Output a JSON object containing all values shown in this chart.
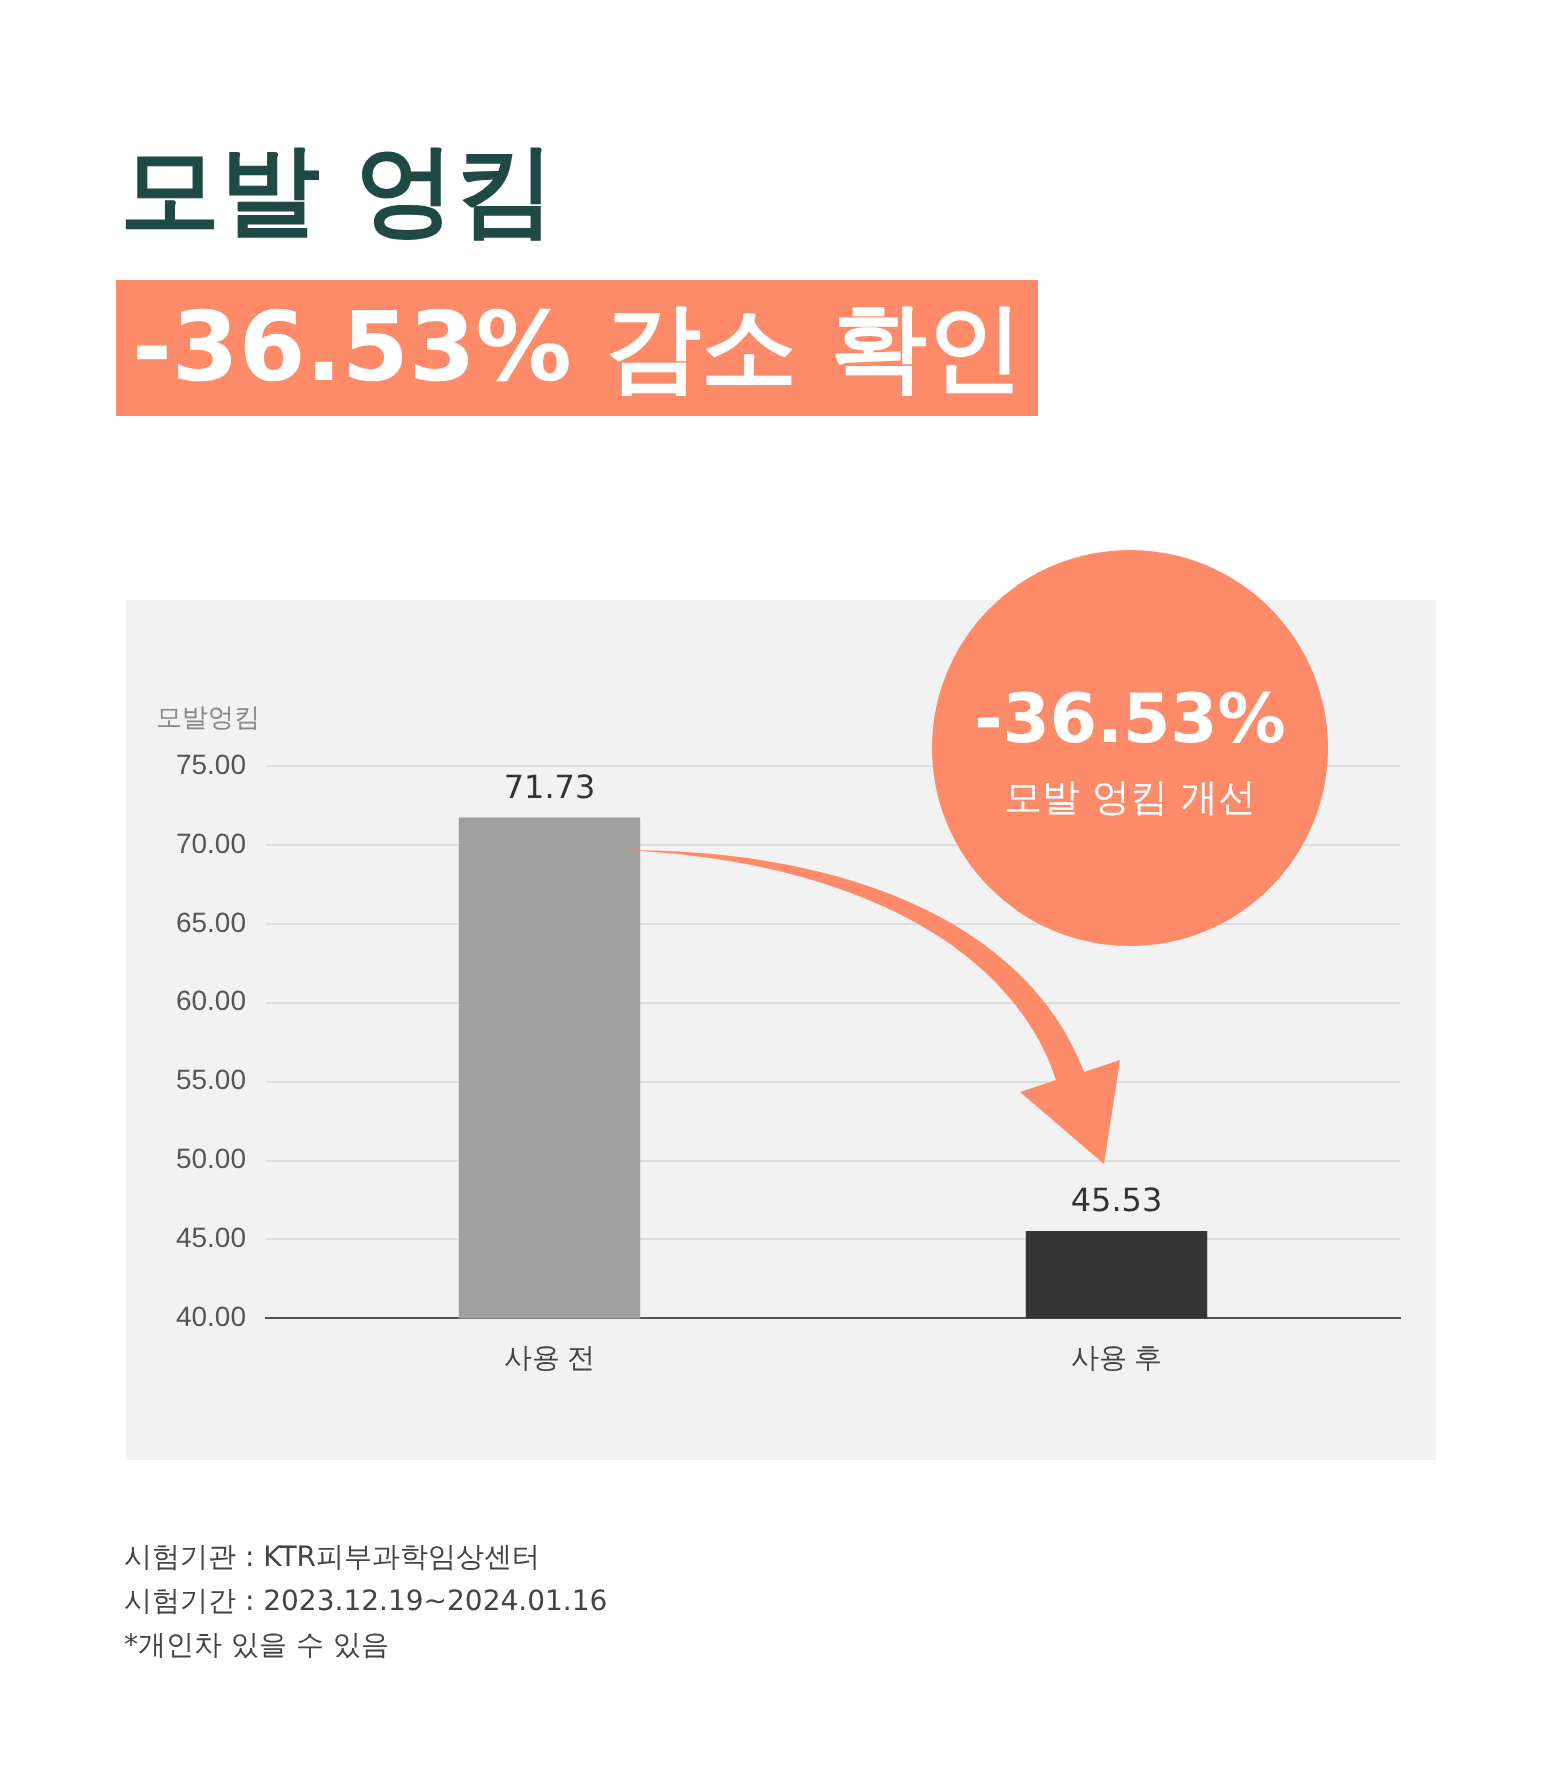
{
  "chart_data": {
    "type": "bar",
    "title": "모발 엉킴",
    "subtitle": "-36.53% 감소 확인",
    "ylabel": "모발엉킴",
    "categories": [
      "사용 전",
      "사용 후"
    ],
    "values": [
      71.73,
      45.53
    ],
    "colors": [
      "#a0a0a0",
      "#363636"
    ],
    "ylim": [
      40,
      75
    ],
    "yticks": [
      {
        "value": 40,
        "label": "40.00"
      },
      {
        "value": 45,
        "label": "45.00"
      },
      {
        "value": 50,
        "label": "50.00"
      },
      {
        "value": 55,
        "label": "55.00"
      },
      {
        "value": 60,
        "label": "60.00"
      },
      {
        "value": 65,
        "label": "65.00"
      },
      {
        "value": 70,
        "label": "70.00"
      },
      {
        "value": 75,
        "label": "75.00"
      }
    ],
    "grid": "y",
    "legend": false,
    "data_labels": true,
    "annotations": [
      "-36.53%",
      "모발 엉킴 개선",
      "시험기관 : KTR피부과학임상센터",
      "시험기간 : 2023.12.19~2024.01.16",
      "*개인차 있을 수 있음"
    ]
  }
}
